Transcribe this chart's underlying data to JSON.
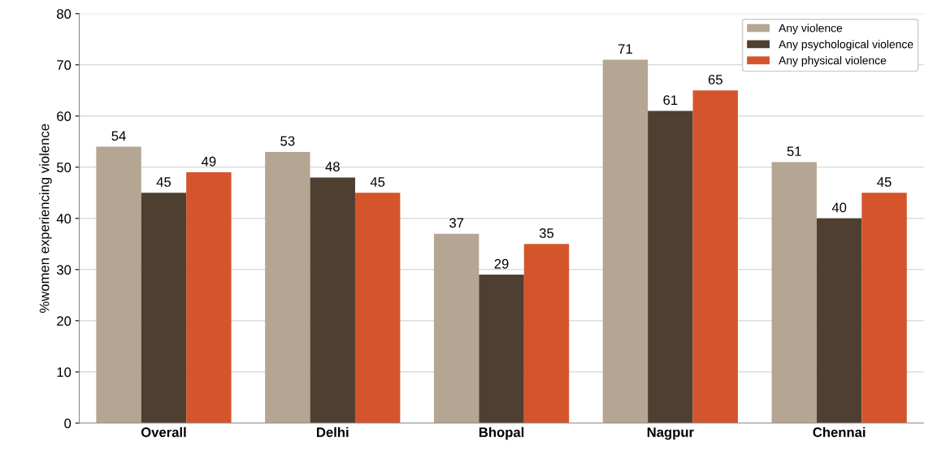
{
  "chart_data": {
    "type": "bar",
    "ylabel": "%women experiencing violence",
    "categories": [
      "Overall",
      "Delhi",
      "Bhopal",
      "Nagpur",
      "Chennai"
    ],
    "series": [
      {
        "name": "Any violence",
        "color": "#b5a593",
        "values": [
          54,
          53,
          37,
          71,
          51
        ]
      },
      {
        "name": "Any psychological violence",
        "color": "#4e3f30",
        "values": [
          45,
          48,
          29,
          61,
          40
        ]
      },
      {
        "name": "Any physical violence",
        "color": "#d4552b",
        "values": [
          49,
          45,
          35,
          65,
          45
        ]
      }
    ],
    "ylim": [
      0,
      80
    ],
    "yticks": [
      0,
      10,
      20,
      30,
      40,
      50,
      60,
      70,
      80
    ],
    "grid": "y",
    "legend": "top right",
    "data_labels": true
  }
}
